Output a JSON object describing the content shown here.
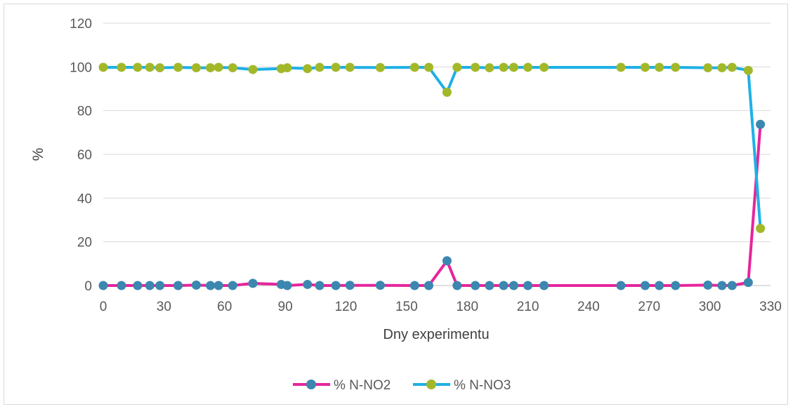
{
  "chart_data": {
    "type": "line",
    "title": "",
    "xlabel": "Dny experimentu",
    "ylabel": "%",
    "xlim": [
      0,
      330
    ],
    "ylim": [
      0,
      120
    ],
    "xticks": [
      0,
      30,
      60,
      90,
      120,
      150,
      180,
      210,
      240,
      270,
      300,
      330
    ],
    "yticks": [
      0,
      20,
      40,
      60,
      80,
      100,
      120
    ],
    "grid": "horizontal",
    "legend_position": "bottom",
    "series": [
      {
        "name": "% N-NO2",
        "line_color": "#e6259c",
        "marker_color": "#3b87b0",
        "points": [
          [
            0,
            0
          ],
          [
            9,
            0
          ],
          [
            17,
            0
          ],
          [
            23,
            0
          ],
          [
            28,
            0
          ],
          [
            37,
            0
          ],
          [
            46,
            0.2
          ],
          [
            53,
            0
          ],
          [
            57,
            0
          ],
          [
            64,
            0
          ],
          [
            74,
            1
          ],
          [
            88,
            0.5
          ],
          [
            91,
            0
          ],
          [
            101,
            0.5
          ],
          [
            107,
            0
          ],
          [
            115,
            0
          ],
          [
            122,
            0.1
          ],
          [
            137,
            0.1
          ],
          [
            154,
            0
          ],
          [
            161,
            0
          ],
          [
            170,
            11.3
          ],
          [
            175,
            0
          ],
          [
            184,
            0
          ],
          [
            191,
            0
          ],
          [
            198,
            0
          ],
          [
            203,
            0
          ],
          [
            210,
            0
          ],
          [
            218,
            0
          ],
          [
            256,
            0
          ],
          [
            268,
            0
          ],
          [
            275,
            0
          ],
          [
            283,
            0
          ],
          [
            299,
            0.2
          ],
          [
            306,
            0
          ],
          [
            311,
            0
          ],
          [
            319,
            1.4
          ],
          [
            325,
            73.7
          ]
        ]
      },
      {
        "name": "% N-NO3",
        "line_color": "#1fb0e6",
        "marker_color": "#a3b829",
        "points": [
          [
            0,
            99.8
          ],
          [
            9,
            99.8
          ],
          [
            17,
            99.8
          ],
          [
            23,
            99.8
          ],
          [
            28,
            99.6
          ],
          [
            37,
            99.8
          ],
          [
            46,
            99.6
          ],
          [
            53,
            99.6
          ],
          [
            57,
            99.8
          ],
          [
            64,
            99.6
          ],
          [
            74,
            98.8
          ],
          [
            88,
            99.2
          ],
          [
            91,
            99.6
          ],
          [
            101,
            99.2
          ],
          [
            107,
            99.8
          ],
          [
            115,
            99.8
          ],
          [
            122,
            99.8
          ],
          [
            137,
            99.7
          ],
          [
            154,
            99.8
          ],
          [
            161,
            99.8
          ],
          [
            170,
            88.4
          ],
          [
            175,
            99.8
          ],
          [
            184,
            99.8
          ],
          [
            191,
            99.6
          ],
          [
            198,
            99.8
          ],
          [
            203,
            99.8
          ],
          [
            210,
            99.8
          ],
          [
            218,
            99.8
          ],
          [
            256,
            99.8
          ],
          [
            268,
            99.8
          ],
          [
            275,
            99.8
          ],
          [
            283,
            99.8
          ],
          [
            299,
            99.6
          ],
          [
            306,
            99.6
          ],
          [
            311,
            99.8
          ],
          [
            319,
            98.4
          ],
          [
            325,
            26.1
          ]
        ]
      }
    ]
  }
}
